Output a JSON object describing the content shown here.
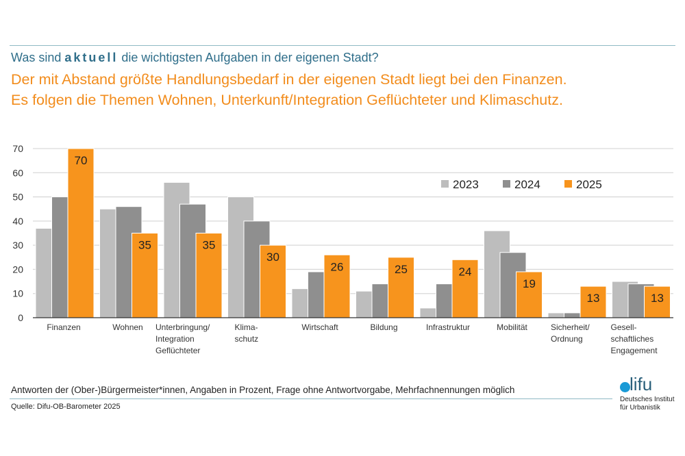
{
  "header": {
    "question_pre": "Was sind ",
    "question_emph": "aktuell",
    "question_post": " die wichtigsten Aufgaben in der eigenen Stadt?",
    "headline_1": "Der mit Abstand größte Handlungsbedarf in der eigenen Stadt liegt bei den Finanzen.",
    "headline_2": "Es folgen die Themen Wohnen, Unterkunft/Integration Geflüchteter und Klimaschutz."
  },
  "chart_data": {
    "type": "bar",
    "categories": [
      [
        "Finanzen"
      ],
      [
        "Wohnen"
      ],
      [
        "Unterbringung/",
        "Integration",
        "Geflüchteter"
      ],
      [
        "Klima-",
        "schutz"
      ],
      [
        "Wirtschaft"
      ],
      [
        "Bildung"
      ],
      [
        "Infrastruktur"
      ],
      [
        "Mobilität"
      ],
      [
        "Sicherheit/",
        "Ordnung"
      ],
      [
        "Gesell-",
        "schaftliches",
        "Engagement"
      ]
    ],
    "series": [
      {
        "name": "2023",
        "color": "#bdbdbd",
        "values": [
          37,
          45,
          56,
          50,
          12,
          11,
          4,
          36,
          2,
          15
        ],
        "labeled": false
      },
      {
        "name": "2024",
        "color": "#8f8f8f",
        "values": [
          50,
          46,
          47,
          40,
          19,
          14,
          14,
          27,
          2,
          14
        ],
        "labeled": false
      },
      {
        "name": "2025",
        "color": "#f7941d",
        "values": [
          70,
          35,
          35,
          30,
          26,
          25,
          24,
          19,
          13,
          13
        ],
        "labeled": true
      }
    ],
    "ylim": [
      0,
      70
    ],
    "yticks": [
      0,
      10,
      20,
      30,
      40,
      50,
      60,
      70
    ],
    "grid": true,
    "legend": "top-right"
  },
  "footer": {
    "note": "Antworten der (Ober-)Bürgermeister*innen, Angaben in Prozent, Frage ohne Antwortvorgabe, Mehrfachnennungen möglich",
    "source": "Quelle: Difu-OB-Barometer 2025"
  },
  "logo": {
    "word": "lifu",
    "line1": "Deutsches Institut",
    "line2": "für Urbanistik"
  }
}
